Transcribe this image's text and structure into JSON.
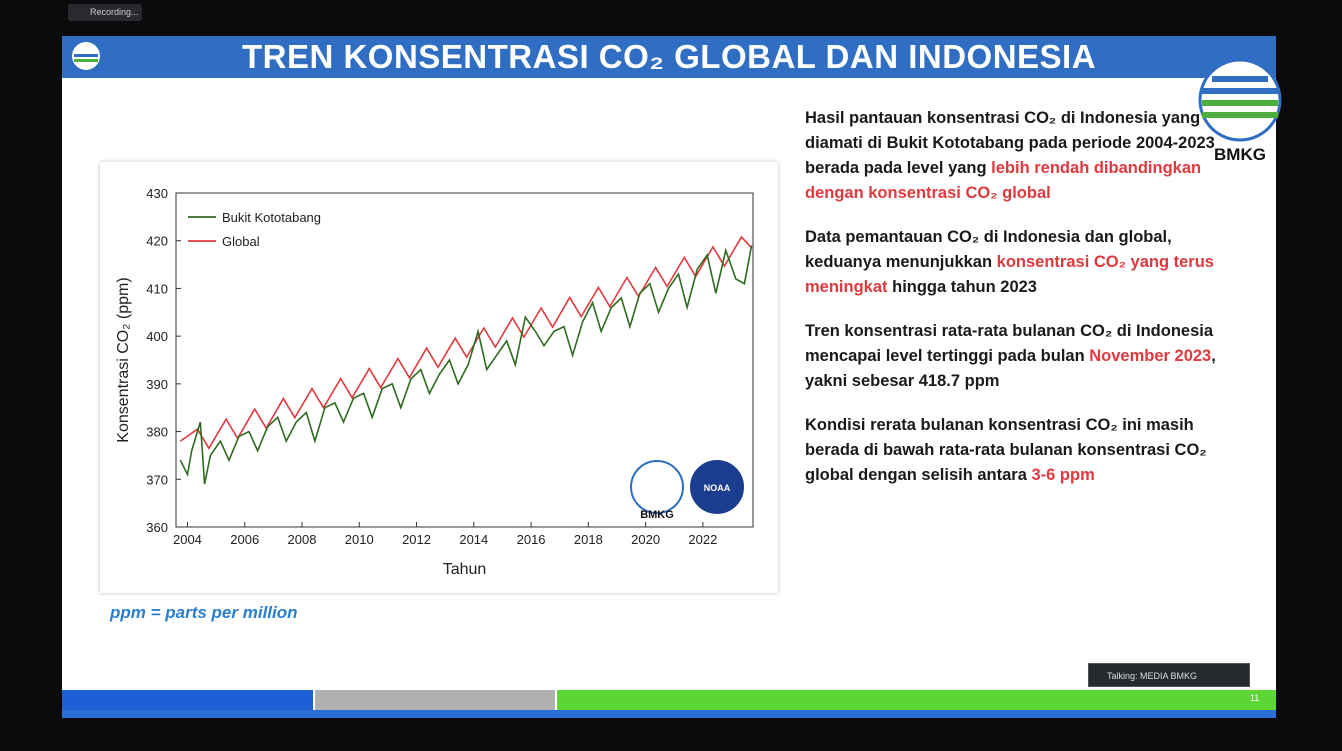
{
  "recording": "Recording...",
  "slide": {
    "title": "TREN KONSENTRASI CO₂ GLOBAL DAN INDONESIA",
    "logo_label": "BMKG",
    "paragraphs": [
      [
        {
          "text": "Hasil pantauan konsentrasi CO₂ di Indonesia yang diamati di Bukit Kototabang pada periode 2004-2023 berada pada level yang "
        },
        {
          "text": "lebih rendah dibandingkan dengan konsentrasi CO₂ global",
          "highlight": true
        }
      ],
      [
        {
          "text": "Data pemantauan CO₂ di Indonesia dan global, keduanya menunjukkan "
        },
        {
          "text": "konsentrasi CO₂ yang terus meningkat",
          "highlight": true
        },
        {
          "text": " hingga tahun 2023"
        }
      ],
      [
        {
          "text": "Tren konsentrasi rata-rata bulanan CO₂ di Indonesia mencapai level tertinggi pada bulan "
        },
        {
          "text": "November 2023",
          "highlight": true
        },
        {
          "text": ", yakni sebesar 418.7 ppm"
        }
      ],
      [
        {
          "text": "Kondisi rerata bulanan konsentrasi CO₂ ini masih berada di bawah rata-rata bulanan konsentrasi CO₂ global dengan selisih antara "
        },
        {
          "text": "3-6 ppm",
          "highlight": true
        }
      ]
    ],
    "note": "ppm = parts per million",
    "page_number": "11"
  },
  "talking": "Talking: MEDIA BMKG",
  "chart_data": {
    "type": "line",
    "x_label": "Tahun",
    "y_label": "Konsentrasi CO₂ (ppm)",
    "logos": [
      "BMKG",
      "NOAA"
    ],
    "legend": "upper left",
    "xlim": [
      2003.6,
      2023.75
    ],
    "xticks": [
      2004,
      2006,
      2008,
      2010,
      2012,
      2014,
      2016,
      2018,
      2020,
      2022
    ],
    "ylim": [
      360,
      430
    ],
    "yticks": [
      360,
      370,
      380,
      390,
      400,
      410,
      420,
      430
    ],
    "series": [
      {
        "name": "Bukit Kototabang",
        "color": "#2e6b1f",
        "x": [
          2003.75,
          2004.0,
          2004.15,
          2004.45,
          2004.6,
          2004.8,
          2005.15,
          2005.45,
          2005.8,
          2006.15,
          2006.45,
          2006.8,
          2007.15,
          2007.45,
          2007.8,
          2008.15,
          2008.45,
          2008.8,
          2009.15,
          2009.45,
          2009.8,
          2010.15,
          2010.45,
          2010.8,
          2011.15,
          2011.45,
          2011.8,
          2012.15,
          2012.45,
          2012.8,
          2013.15,
          2013.45,
          2013.8,
          2014.15,
          2014.45,
          2014.8,
          2015.15,
          2015.45,
          2015.8,
          2016.15,
          2016.45,
          2016.8,
          2017.15,
          2017.45,
          2017.8,
          2018.15,
          2018.45,
          2018.8,
          2019.15,
          2019.45,
          2019.8,
          2020.15,
          2020.45,
          2020.8,
          2021.15,
          2021.45,
          2021.8,
          2022.15,
          2022.45,
          2022.8,
          2023.15,
          2023.45,
          2023.7
        ],
        "values": [
          374,
          371,
          376,
          382,
          369,
          375,
          378,
          374,
          379,
          380,
          376,
          381,
          383,
          378,
          382,
          384,
          378,
          385,
          386,
          382,
          387,
          388,
          383,
          389,
          390,
          385,
          391,
          393,
          388,
          392,
          395,
          390,
          394,
          401,
          393,
          396,
          399,
          394,
          404,
          401,
          398,
          401,
          402,
          396,
          403,
          407,
          401,
          406,
          408,
          402,
          409,
          411,
          405,
          410,
          413,
          406,
          414,
          417,
          409,
          418,
          412,
          411,
          419
        ]
      },
      {
        "name": "Global",
        "color": "#e0393e",
        "x": [
          2003.75,
          2004.35,
          2004.75,
          2005.35,
          2005.75,
          2006.35,
          2006.75,
          2007.35,
          2007.75,
          2008.35,
          2008.75,
          2009.35,
          2009.75,
          2010.35,
          2010.75,
          2011.35,
          2011.75,
          2012.35,
          2012.75,
          2013.35,
          2013.75,
          2014.35,
          2014.75,
          2015.35,
          2015.75,
          2016.35,
          2016.75,
          2017.35,
          2017.75,
          2018.35,
          2018.75,
          2019.35,
          2019.75,
          2020.35,
          2020.75,
          2021.35,
          2021.75,
          2022.35,
          2022.75,
          2023.35,
          2023.7
        ],
        "values": [
          378,
          380.5,
          376.5,
          382.6,
          378.6,
          384.7,
          380.7,
          386.9,
          382.9,
          389.0,
          385.0,
          391.1,
          387.1,
          393.2,
          389.2,
          395.3,
          391.3,
          397.5,
          393.5,
          399.6,
          395.6,
          401.7,
          397.7,
          403.8,
          399.8,
          405.9,
          401.9,
          408.1,
          404.1,
          410.2,
          406.2,
          412.3,
          408.3,
          414.4,
          410.4,
          416.5,
          412.5,
          418.7,
          414.7,
          420.8,
          418.5
        ]
      }
    ]
  }
}
